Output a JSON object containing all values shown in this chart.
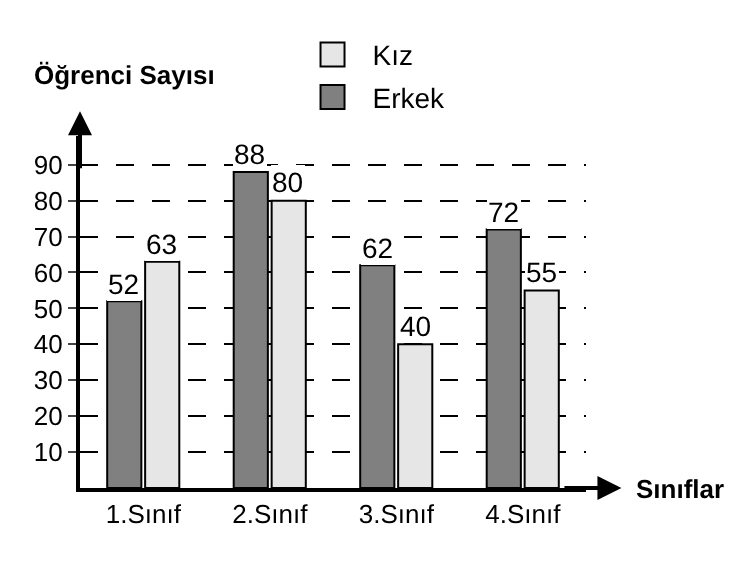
{
  "chart_data": {
    "type": "bar",
    "xlabel": "Sınıflar",
    "ylabel": "Öğrenci Sayısı",
    "categories": [
      "1.Sınıf",
      "2.Sınıf",
      "3.Sınıf",
      "4.Sınıf"
    ],
    "series": [
      {
        "name": "Erkek",
        "color": "#808080",
        "values": [
          52,
          88,
          62,
          72
        ]
      },
      {
        "name": "Kız",
        "color": "#e6e6e6",
        "values": [
          63,
          80,
          40,
          55
        ]
      }
    ],
    "ylim": [
      0,
      98
    ],
    "yticks": [
      10,
      20,
      30,
      40,
      50,
      60,
      70,
      80,
      90
    ],
    "grid": "y",
    "line_style": "dashed",
    "legend": "top",
    "data_labels": true
  }
}
